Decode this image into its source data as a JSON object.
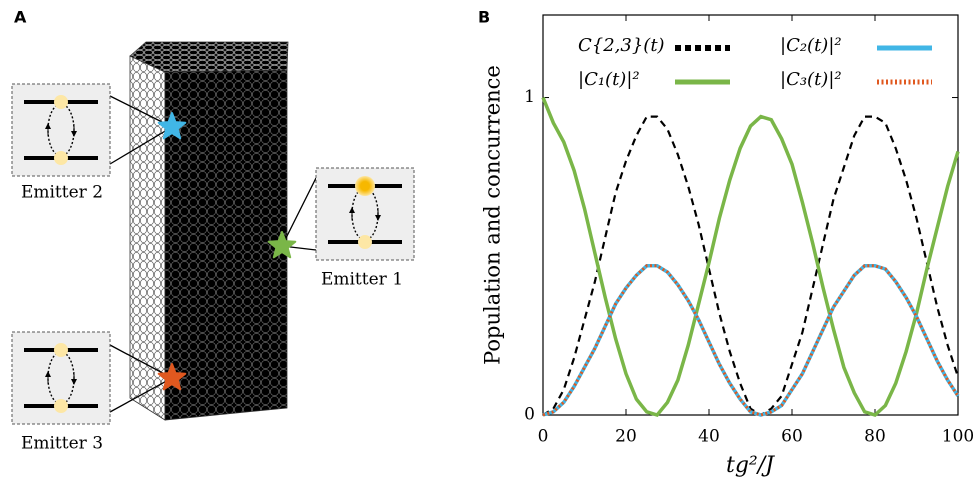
{
  "panel_a": {
    "label": "A",
    "emitters": [
      "Emitter 1",
      "Emitter 2",
      "Emitter 3"
    ]
  },
  "chart_data": {
    "type": "line",
    "panel_label": "B",
    "x_label": "tg²/J",
    "y_label": "Population and concurrence",
    "x": [
      0,
      2.5,
      5,
      7.5,
      10,
      12.5,
      15,
      17.5,
      20,
      22.5,
      25,
      27.5,
      30,
      32.5,
      35,
      37.5,
      40,
      42.5,
      45,
      47.5,
      50,
      52.5,
      55,
      57.5,
      60,
      62.5,
      65,
      67.5,
      70,
      72.5,
      75,
      77.5,
      80,
      82.5,
      85,
      87.5,
      90,
      92.5,
      95,
      97.5,
      100
    ],
    "series": [
      {
        "name": "C{2,3}(t)",
        "color": "#000000",
        "dash": "dashed",
        "values": [
          0,
          0.02,
          0.08,
          0.18,
          0.3,
          0.42,
          0.56,
          0.7,
          0.8,
          0.88,
          0.94,
          0.94,
          0.9,
          0.82,
          0.72,
          0.6,
          0.46,
          0.32,
          0.2,
          0.1,
          0.02,
          0.0,
          0.02,
          0.06,
          0.16,
          0.26,
          0.4,
          0.54,
          0.68,
          0.78,
          0.88,
          0.94,
          0.94,
          0.92,
          0.84,
          0.74,
          0.62,
          0.48,
          0.34,
          0.22,
          0.12
        ]
      },
      {
        "name": "|C₁(t)|²",
        "color": "#7ab648",
        "dash": "solid",
        "values": [
          1.0,
          0.92,
          0.86,
          0.77,
          0.65,
          0.51,
          0.37,
          0.24,
          0.13,
          0.05,
          0.01,
          0.0,
          0.04,
          0.11,
          0.22,
          0.35,
          0.48,
          0.62,
          0.74,
          0.84,
          0.91,
          0.94,
          0.93,
          0.87,
          0.79,
          0.67,
          0.54,
          0.4,
          0.27,
          0.15,
          0.07,
          0.01,
          0.0,
          0.03,
          0.1,
          0.2,
          0.32,
          0.46,
          0.59,
          0.72,
          0.83
        ]
      },
      {
        "name": "|C₂(t)|²",
        "color": "#41b6e6",
        "dash": "solid",
        "values": [
          0,
          0.01,
          0.04,
          0.09,
          0.15,
          0.21,
          0.28,
          0.35,
          0.4,
          0.44,
          0.47,
          0.47,
          0.45,
          0.41,
          0.36,
          0.3,
          0.23,
          0.16,
          0.1,
          0.05,
          0.01,
          0.0,
          0.01,
          0.03,
          0.08,
          0.13,
          0.2,
          0.27,
          0.34,
          0.39,
          0.44,
          0.47,
          0.47,
          0.46,
          0.42,
          0.37,
          0.31,
          0.24,
          0.17,
          0.11,
          0.06
        ]
      },
      {
        "name": "|C₃(t)|²",
        "color": "#e0581f",
        "dash": "dotted",
        "values": [
          0,
          0.01,
          0.04,
          0.09,
          0.15,
          0.21,
          0.28,
          0.35,
          0.4,
          0.44,
          0.47,
          0.47,
          0.45,
          0.41,
          0.36,
          0.3,
          0.23,
          0.16,
          0.1,
          0.05,
          0.01,
          0.0,
          0.01,
          0.03,
          0.08,
          0.13,
          0.2,
          0.27,
          0.34,
          0.39,
          0.44,
          0.47,
          0.47,
          0.46,
          0.42,
          0.37,
          0.31,
          0.24,
          0.17,
          0.11,
          0.06
        ]
      }
    ],
    "xlim": [
      0,
      100
    ],
    "xticks": [
      0,
      20,
      40,
      60,
      80,
      100
    ],
    "ylim": [
      0,
      1.26
    ],
    "yticks": [
      0,
      1
    ],
    "grid": false
  }
}
